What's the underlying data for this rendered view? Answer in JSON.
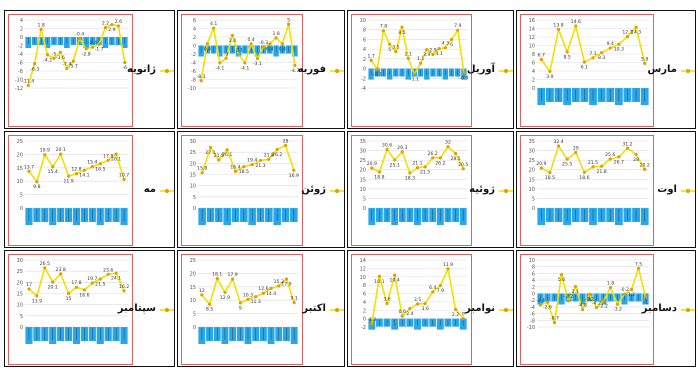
{
  "chart_data": [
    {
      "type": "line",
      "title": "ژانویه",
      "ylim": [
        -12,
        4
      ],
      "yticks": [
        4,
        2,
        0,
        -2,
        -4,
        -6,
        -8,
        -10,
        -12
      ],
      "values": [
        -11.4,
        -6.3,
        1.8,
        -4.2,
        -5,
        -3.6,
        -7.4,
        -5.7,
        -0.4,
        -2.8,
        -2.4,
        -1.7,
        2.2,
        2.9,
        2.6,
        -6
      ]
    },
    {
      "type": "line",
      "title": "فوریه",
      "ylim": [
        -10,
        6
      ],
      "yticks": [
        6,
        4,
        2,
        0,
        -2,
        -4,
        -6,
        -8,
        -10
      ],
      "values": [
        -8.3,
        0.4,
        4.1,
        -4.1,
        -3,
        2.4,
        -2.1,
        -4.1,
        0.4,
        -3.1,
        -0.3,
        0.4,
        1.8,
        0.4,
        5,
        -4.7
      ]
    },
    {
      "type": "line",
      "title": "آوریل",
      "ylim": [
        -4,
        10
      ],
      "yticks": [
        10,
        8,
        6,
        4,
        2,
        0,
        -2,
        -4
      ],
      "values": [
        1.7,
        -0.1,
        7.8,
        5,
        3.5,
        8.5,
        2.1,
        -1.1,
        1.1,
        3.9,
        2.9,
        4.1,
        4.3,
        6,
        7.9,
        -0.9
      ]
    },
    {
      "type": "line",
      "title": "مارس",
      "ylim": [
        0,
        16
      ],
      "yticks": [
        16,
        14,
        12,
        10,
        8,
        6,
        4,
        2,
        0
      ],
      "values": [
        6.7,
        3.9,
        13.8,
        8.5,
        14.6,
        6.1,
        7.1,
        8.3,
        9.4,
        10.3,
        12.1,
        14.3,
        5.8
      ]
    },
    {
      "type": "line",
      "title": "مه",
      "ylim": [
        0,
        25
      ],
      "yticks": [
        25,
        20,
        15,
        10,
        5,
        0
      ],
      "values": [
        13.7,
        9.8,
        19.9,
        15.4,
        20.1,
        11.9,
        12.8,
        14.1,
        15.4,
        16.5,
        17.8,
        20.1,
        10.7
      ]
    },
    {
      "type": "line",
      "title": "ژوئن",
      "ylim": [
        0,
        30
      ],
      "yticks": [
        30,
        25,
        20,
        15,
        10,
        5,
        0
      ],
      "values": [
        15.8,
        27.1,
        21.5,
        26.1,
        16.4,
        18.5,
        19.4,
        21.3,
        21.8,
        26.2,
        28,
        16.9
      ]
    },
    {
      "type": "line",
      "title": "ژوئیه",
      "ylim": [
        0,
        35
      ],
      "yticks": [
        35,
        30,
        25,
        20,
        15,
        10,
        5,
        0
      ],
      "values": [
        20.9,
        18.8,
        30.6,
        25.1,
        29.3,
        18.3,
        21.1,
        21.5,
        26.2,
        26.2,
        32,
        28.5,
        20.5
      ]
    },
    {
      "type": "line",
      "title": "اوت",
      "ylim": [
        0,
        35
      ],
      "yticks": [
        35,
        30,
        25,
        20,
        15,
        10,
        5,
        0
      ],
      "values": [
        20.9,
        18.5,
        32.4,
        25.5,
        29,
        18.6,
        21.5,
        21.8,
        25.6,
        26.7,
        31.2,
        28,
        20.2
      ]
    },
    {
      "type": "line",
      "title": "سپتامبر",
      "ylim": [
        0,
        30
      ],
      "yticks": [
        30,
        25,
        20,
        15,
        10,
        5,
        0
      ],
      "values": [
        17,
        13.9,
        26.5,
        20.1,
        23.8,
        15,
        17.8,
        16.6,
        19.7,
        21.5,
        23.6,
        24.1,
        16.2
      ]
    },
    {
      "type": "line",
      "title": "اکتبر",
      "ylim": [
        0,
        25
      ],
      "yticks": [
        25,
        20,
        15,
        10,
        5,
        0
      ],
      "values": [
        12,
        8.5,
        18.1,
        12.9,
        17.9,
        9,
        10.3,
        11.3,
        12.6,
        14.4,
        15.3,
        17.9,
        9.1
      ]
    },
    {
      "type": "line",
      "title": "نوامبر",
      "ylim": [
        -2,
        14
      ],
      "yticks": [
        14,
        12,
        10,
        8,
        6,
        4,
        2,
        0,
        -2
      ],
      "values": [
        -1.3,
        10.1,
        3.6,
        10.4,
        0.6,
        2.4,
        3.5,
        3.6,
        6.4,
        7.9,
        11.9,
        2.2,
        0
      ]
    },
    {
      "type": "line",
      "title": "دسامبر",
      "ylim": [
        -10,
        10
      ],
      "yticks": [
        10,
        8,
        6,
        4,
        2,
        0,
        -2,
        -4,
        -6,
        -8,
        -10
      ],
      "values": [
        -3.4,
        -2.6,
        -8.7,
        5.6,
        -2.2,
        2.1,
        -4.8,
        -0.2,
        -4.2,
        -2.2,
        1.8,
        -3.2,
        -0.2,
        1.2,
        7.5,
        -1
      ]
    }
  ]
}
